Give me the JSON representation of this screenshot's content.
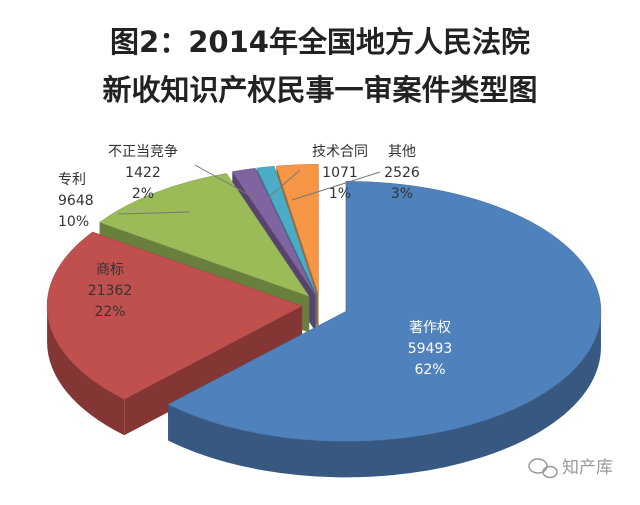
{
  "chart_data": {
    "type": "pie3d",
    "title": [
      "图2：2014年全国地方人民法院",
      "新收知识产权民事一审案件类型图"
    ],
    "categories": [
      "著作权",
      "商标",
      "专利",
      "不正当竞争",
      "技术合同",
      "其他"
    ],
    "values": [
      59493,
      21362,
      9648,
      1422,
      1071,
      2526
    ],
    "percent_labels": [
      "62%",
      "22%",
      "10%",
      "2%",
      "1%",
      "3%"
    ],
    "colors": [
      "#4f81bd",
      "#c0504d",
      "#9bbb59",
      "#8064a2",
      "#4bacc6",
      "#f79646"
    ],
    "watermark": "知产库"
  }
}
